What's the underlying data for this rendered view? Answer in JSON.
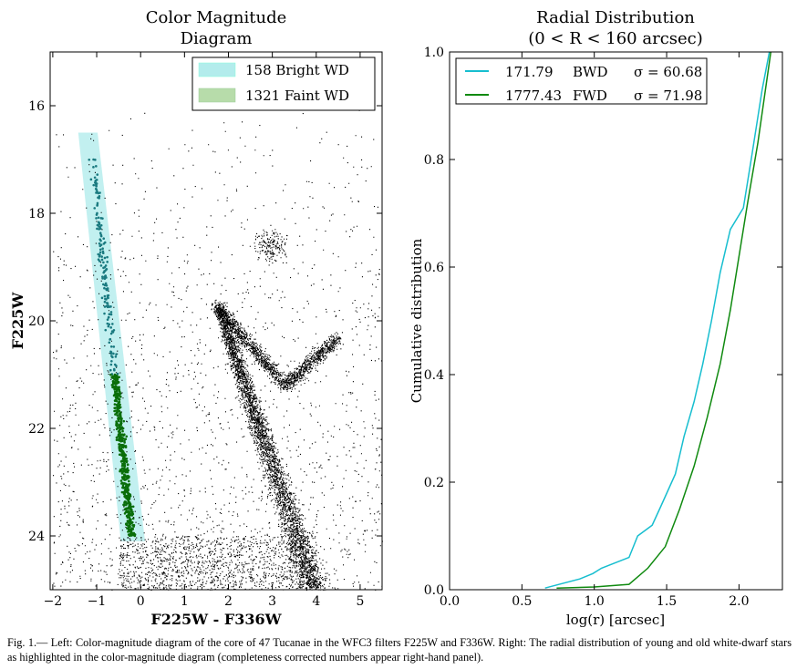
{
  "chart_data": [
    {
      "type": "scatter",
      "title_lines": [
        "Color Magnitude",
        "Diagram"
      ],
      "xlabel": "F225W - F336W",
      "ylabel": "F225W",
      "xlim": [
        -2.06,
        5.5
      ],
      "ylim": [
        25,
        15
      ],
      "y_inverted": true,
      "xticks": [
        "−2",
        "−1",
        "0",
        "1",
        "2",
        "3",
        "4",
        "5"
      ],
      "xtick_values": [
        -2,
        -1,
        0,
        1,
        2,
        3,
        4,
        5
      ],
      "yticks": [
        "16",
        "18",
        "20",
        "22",
        "24"
      ],
      "ytick_values": [
        16,
        18,
        20,
        22,
        24
      ],
      "legend": {
        "placement": "top-right",
        "entries": [
          {
            "label": "158 Bright WD",
            "color": "#7fdede"
          },
          {
            "label": "1321 Faint WD",
            "color": "#7fbf7f"
          }
        ]
      },
      "series": [
        {
          "name": "Bright WD",
          "count": 158,
          "color": "#1a7a80",
          "mag_range": [
            17,
            21
          ]
        },
        {
          "name": "Faint WD",
          "count": 1321,
          "color": "#0a6e0a",
          "mag_range": [
            21,
            24
          ]
        },
        {
          "name": "Cluster stars",
          "color": "#000000"
        }
      ],
      "selection_band": {
        "color": "#b3ecec",
        "top": {
          "mag": 16.5,
          "color_range": [
            -1.42,
            -0.98
          ]
        },
        "bottom": {
          "mag": 24.1,
          "color_range": [
            -0.45,
            0.1
          ]
        }
      }
    },
    {
      "type": "line",
      "title_lines": [
        "Radial Distribution",
        "(0 < R < 160 arcsec)"
      ],
      "xlabel": "log(r) [arcsec]",
      "ylabel": "Cumulative distribution",
      "xlim": [
        0,
        2.3
      ],
      "ylim": [
        0,
        1
      ],
      "xticks": [
        "0.0",
        "0.5",
        "1.0",
        "1.5",
        "2.0"
      ],
      "xtick_values": [
        0,
        0.5,
        1,
        1.5,
        2
      ],
      "yticks": [
        "0.0",
        "0.2",
        "0.4",
        "0.6",
        "0.8",
        "1.0"
      ],
      "ytick_values": [
        0,
        0.2,
        0.4,
        0.6,
        0.8,
        1.0
      ],
      "legend": {
        "placement": "top-left"
      },
      "series": [
        {
          "name": "BWD",
          "number": "171.79",
          "sigma": "σ = 60.68",
          "color": "#17becf",
          "x": [
            0.66,
            0.9,
            0.99,
            1.05,
            1.24,
            1.3,
            1.4,
            1.46,
            1.56,
            1.62,
            1.69,
            1.75,
            1.81,
            1.87,
            1.94,
            2.03,
            2.09,
            2.16,
            2.21
          ],
          "y": [
            0.003,
            0.02,
            0.03,
            0.04,
            0.06,
            0.1,
            0.12,
            0.155,
            0.215,
            0.285,
            0.35,
            0.42,
            0.5,
            0.59,
            0.67,
            0.71,
            0.81,
            0.93,
            1.0
          ]
        },
        {
          "name": "FWD",
          "number": "1777.43",
          "sigma": "σ = 71.98",
          "color": "#108a10",
          "x": [
            0.74,
            1.0,
            1.24,
            1.37,
            1.49,
            1.59,
            1.69,
            1.78,
            1.87,
            1.94,
            2.0,
            2.06,
            2.13,
            2.22
          ],
          "y": [
            0.003,
            0.005,
            0.01,
            0.04,
            0.08,
            0.15,
            0.23,
            0.32,
            0.42,
            0.52,
            0.62,
            0.72,
            0.83,
            1.0
          ]
        }
      ]
    }
  ],
  "caption": "Fig. 1.— Left: Color-magnitude diagram of the core of 47 Tucanae in the WFC3 filters F225W and F336W. Right: The radial distribution of young and old white-dwarf stars as highlighted in the color-magnitude diagram (completeness corrected numbers appear right-hand panel)."
}
